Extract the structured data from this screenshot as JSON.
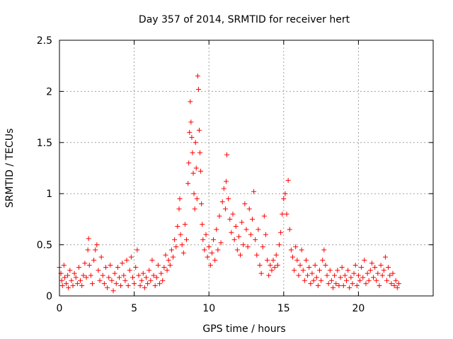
{
  "chart_data": {
    "type": "scatter",
    "title": "Day 357 of 2014, SRMTID for receiver hert",
    "xlabel": "GPS time / hours",
    "ylabel": "SRMTID / TECUs",
    "xlim": [
      0,
      25
    ],
    "ylim": [
      0,
      2.5
    ],
    "xticks": [
      0,
      5,
      10,
      15,
      20
    ],
    "xtick_labels": [
      "0",
      "5",
      "10",
      "15",
      "20"
    ],
    "yticks": [
      0,
      0.5,
      1,
      1.5,
      2,
      2.5
    ],
    "ytick_labels": [
      "0",
      "0.5",
      "1",
      "1.5",
      "2",
      "2.5"
    ],
    "grid": true,
    "marker": "+",
    "series": [
      {
        "name": "SRMTID",
        "color": "#ff0000",
        "points": [
          [
            0.0,
            0.28
          ],
          [
            0.1,
            0.22
          ],
          [
            0.15,
            0.15
          ],
          [
            0.2,
            0.1
          ],
          [
            0.3,
            0.3
          ],
          [
            0.35,
            0.18
          ],
          [
            0.45,
            0.12
          ],
          [
            0.55,
            0.2
          ],
          [
            0.6,
            0.08
          ],
          [
            0.7,
            0.25
          ],
          [
            0.8,
            0.15
          ],
          [
            0.9,
            0.1
          ],
          [
            1.0,
            0.22
          ],
          [
            1.1,
            0.18
          ],
          [
            1.2,
            0.12
          ],
          [
            1.3,
            0.28
          ],
          [
            1.4,
            0.15
          ],
          [
            1.5,
            0.1
          ],
          [
            1.6,
            0.2
          ],
          [
            1.7,
            0.32
          ],
          [
            1.8,
            0.18
          ],
          [
            1.9,
            0.45
          ],
          [
            1.95,
            0.56
          ],
          [
            2.0,
            0.3
          ],
          [
            2.1,
            0.2
          ],
          [
            2.2,
            0.12
          ],
          [
            2.3,
            0.35
          ],
          [
            2.4,
            0.45
          ],
          [
            2.5,
            0.5
          ],
          [
            2.6,
            0.25
          ],
          [
            2.7,
            0.15
          ],
          [
            2.8,
            0.38
          ],
          [
            2.9,
            0.2
          ],
          [
            3.0,
            0.12
          ],
          [
            3.1,
            0.28
          ],
          [
            3.2,
            0.08
          ],
          [
            3.3,
            0.18
          ],
          [
            3.4,
            0.3
          ],
          [
            3.5,
            0.15
          ],
          [
            3.6,
            0.05
          ],
          [
            3.7,
            0.22
          ],
          [
            3.8,
            0.12
          ],
          [
            3.9,
            0.28
          ],
          [
            4.0,
            0.18
          ],
          [
            4.1,
            0.1
          ],
          [
            4.2,
            0.32
          ],
          [
            4.3,
            0.2
          ],
          [
            4.4,
            0.15
          ],
          [
            4.5,
            0.35
          ],
          [
            4.6,
            0.1
          ],
          [
            4.7,
            0.25
          ],
          [
            4.8,
            0.38
          ],
          [
            4.9,
            0.18
          ],
          [
            5.0,
            0.12
          ],
          [
            5.1,
            0.28
          ],
          [
            5.2,
            0.45
          ],
          [
            5.3,
            0.2
          ],
          [
            5.4,
            0.1
          ],
          [
            5.5,
            0.15
          ],
          [
            5.6,
            0.22
          ],
          [
            5.7,
            0.08
          ],
          [
            5.8,
            0.18
          ],
          [
            5.9,
            0.12
          ],
          [
            6.0,
            0.25
          ],
          [
            6.1,
            0.15
          ],
          [
            6.2,
            0.35
          ],
          [
            6.3,
            0.2
          ],
          [
            6.4,
            0.1
          ],
          [
            6.5,
            0.18
          ],
          [
            6.6,
            0.3
          ],
          [
            6.7,
            0.12
          ],
          [
            6.8,
            0.22
          ],
          [
            6.9,
            0.15
          ],
          [
            7.0,
            0.28
          ],
          [
            7.1,
            0.4
          ],
          [
            7.2,
            0.25
          ],
          [
            7.3,
            0.35
          ],
          [
            7.4,
            0.3
          ],
          [
            7.5,
            0.45
          ],
          [
            7.6,
            0.38
          ],
          [
            7.7,
            0.55
          ],
          [
            7.8,
            0.48
          ],
          [
            7.9,
            0.68
          ],
          [
            8.0,
            0.85
          ],
          [
            8.05,
            0.95
          ],
          [
            8.1,
            0.6
          ],
          [
            8.2,
            0.5
          ],
          [
            8.3,
            0.42
          ],
          [
            8.4,
            0.7
          ],
          [
            8.5,
            0.55
          ],
          [
            8.6,
            1.1
          ],
          [
            8.65,
            1.3
          ],
          [
            8.7,
            1.6
          ],
          [
            8.75,
            1.9
          ],
          [
            8.8,
            1.7
          ],
          [
            8.85,
            1.55
          ],
          [
            8.9,
            1.4
          ],
          [
            8.95,
            1.2
          ],
          [
            9.0,
            1.0
          ],
          [
            9.05,
            0.85
          ],
          [
            9.1,
            1.5
          ],
          [
            9.15,
            1.25
          ],
          [
            9.2,
            0.95
          ],
          [
            9.25,
            2.15
          ],
          [
            9.3,
            2.02
          ],
          [
            9.35,
            1.62
          ],
          [
            9.4,
            1.4
          ],
          [
            9.45,
            1.22
          ],
          [
            9.5,
            0.9
          ],
          [
            9.55,
            0.7
          ],
          [
            9.6,
            0.55
          ],
          [
            9.7,
            0.45
          ],
          [
            9.8,
            0.6
          ],
          [
            9.9,
            0.38
          ],
          [
            10.0,
            0.48
          ],
          [
            10.1,
            0.3
          ],
          [
            10.2,
            0.42
          ],
          [
            10.3,
            0.55
          ],
          [
            10.4,
            0.35
          ],
          [
            10.5,
            0.65
          ],
          [
            10.6,
            0.45
          ],
          [
            10.7,
            0.78
          ],
          [
            10.8,
            0.52
          ],
          [
            10.9,
            0.92
          ],
          [
            11.0,
            1.05
          ],
          [
            11.1,
            0.85
          ],
          [
            11.15,
            1.12
          ],
          [
            11.2,
            1.38
          ],
          [
            11.3,
            0.95
          ],
          [
            11.4,
            0.75
          ],
          [
            11.5,
            0.62
          ],
          [
            11.6,
            0.8
          ],
          [
            11.7,
            0.55
          ],
          [
            11.8,
            0.68
          ],
          [
            11.9,
            0.45
          ],
          [
            12.0,
            0.58
          ],
          [
            12.1,
            0.4
          ],
          [
            12.2,
            0.72
          ],
          [
            12.3,
            0.5
          ],
          [
            12.4,
            0.9
          ],
          [
            12.5,
            0.65
          ],
          [
            12.6,
            0.48
          ],
          [
            12.7,
            0.85
          ],
          [
            12.8,
            0.6
          ],
          [
            12.9,
            0.75
          ],
          [
            13.0,
            1.02
          ],
          [
            13.1,
            0.55
          ],
          [
            13.2,
            0.4
          ],
          [
            13.3,
            0.65
          ],
          [
            13.4,
            0.3
          ],
          [
            13.5,
            0.22
          ],
          [
            13.6,
            0.48
          ],
          [
            13.7,
            0.78
          ],
          [
            13.8,
            0.6
          ],
          [
            13.9,
            0.35
          ],
          [
            14.0,
            0.2
          ],
          [
            14.1,
            0.3
          ],
          [
            14.2,
            0.25
          ],
          [
            14.3,
            0.35
          ],
          [
            14.4,
            0.28
          ],
          [
            14.5,
            0.4
          ],
          [
            14.6,
            0.3
          ],
          [
            14.7,
            0.5
          ],
          [
            14.8,
            0.62
          ],
          [
            14.9,
            0.8
          ],
          [
            15.0,
            0.95
          ],
          [
            15.1,
            1.0
          ],
          [
            15.2,
            0.8
          ],
          [
            15.3,
            1.13
          ],
          [
            15.4,
            0.65
          ],
          [
            15.5,
            0.45
          ],
          [
            15.6,
            0.38
          ],
          [
            15.7,
            0.25
          ],
          [
            15.8,
            0.48
          ],
          [
            15.9,
            0.35
          ],
          [
            16.0,
            0.2
          ],
          [
            16.1,
            0.3
          ],
          [
            16.2,
            0.45
          ],
          [
            16.3,
            0.25
          ],
          [
            16.4,
            0.15
          ],
          [
            16.5,
            0.35
          ],
          [
            16.6,
            0.2
          ],
          [
            16.7,
            0.28
          ],
          [
            16.8,
            0.12
          ],
          [
            16.9,
            0.22
          ],
          [
            17.0,
            0.15
          ],
          [
            17.1,
            0.3
          ],
          [
            17.2,
            0.18
          ],
          [
            17.3,
            0.1
          ],
          [
            17.4,
            0.25
          ],
          [
            17.5,
            0.15
          ],
          [
            17.6,
            0.35
          ],
          [
            17.7,
            0.45
          ],
          [
            17.8,
            0.3
          ],
          [
            17.9,
            0.2
          ],
          [
            18.0,
            0.12
          ],
          [
            18.1,
            0.25
          ],
          [
            18.2,
            0.15
          ],
          [
            18.3,
            0.08
          ],
          [
            18.4,
            0.2
          ],
          [
            18.5,
            0.12
          ],
          [
            18.6,
            0.25
          ],
          [
            18.7,
            0.1
          ],
          [
            18.8,
            0.18
          ],
          [
            18.9,
            0.28
          ],
          [
            19.0,
            0.1
          ],
          [
            19.1,
            0.2
          ],
          [
            19.2,
            0.15
          ],
          [
            19.3,
            0.25
          ],
          [
            19.4,
            0.08
          ],
          [
            19.5,
            0.18
          ],
          [
            19.6,
            0.12
          ],
          [
            19.7,
            0.22
          ],
          [
            19.8,
            0.3
          ],
          [
            19.9,
            0.1
          ],
          [
            20.0,
            0.2
          ],
          [
            20.1,
            0.15
          ],
          [
            20.2,
            0.28
          ],
          [
            20.3,
            0.18
          ],
          [
            20.4,
            0.35
          ],
          [
            20.5,
            0.12
          ],
          [
            20.6,
            0.22
          ],
          [
            20.7,
            0.15
          ],
          [
            20.8,
            0.25
          ],
          [
            20.9,
            0.32
          ],
          [
            21.0,
            0.18
          ],
          [
            21.1,
            0.28
          ],
          [
            21.2,
            0.15
          ],
          [
            21.3,
            0.22
          ],
          [
            21.4,
            0.1
          ],
          [
            21.5,
            0.3
          ],
          [
            21.6,
            0.2
          ],
          [
            21.7,
            0.25
          ],
          [
            21.8,
            0.38
          ],
          [
            21.9,
            0.15
          ],
          [
            22.0,
            0.28
          ],
          [
            22.1,
            0.2
          ],
          [
            22.2,
            0.12
          ],
          [
            22.3,
            0.22
          ],
          [
            22.4,
            0.1
          ],
          [
            22.5,
            0.15
          ],
          [
            22.6,
            0.08
          ],
          [
            22.7,
            0.12
          ]
        ]
      }
    ]
  }
}
